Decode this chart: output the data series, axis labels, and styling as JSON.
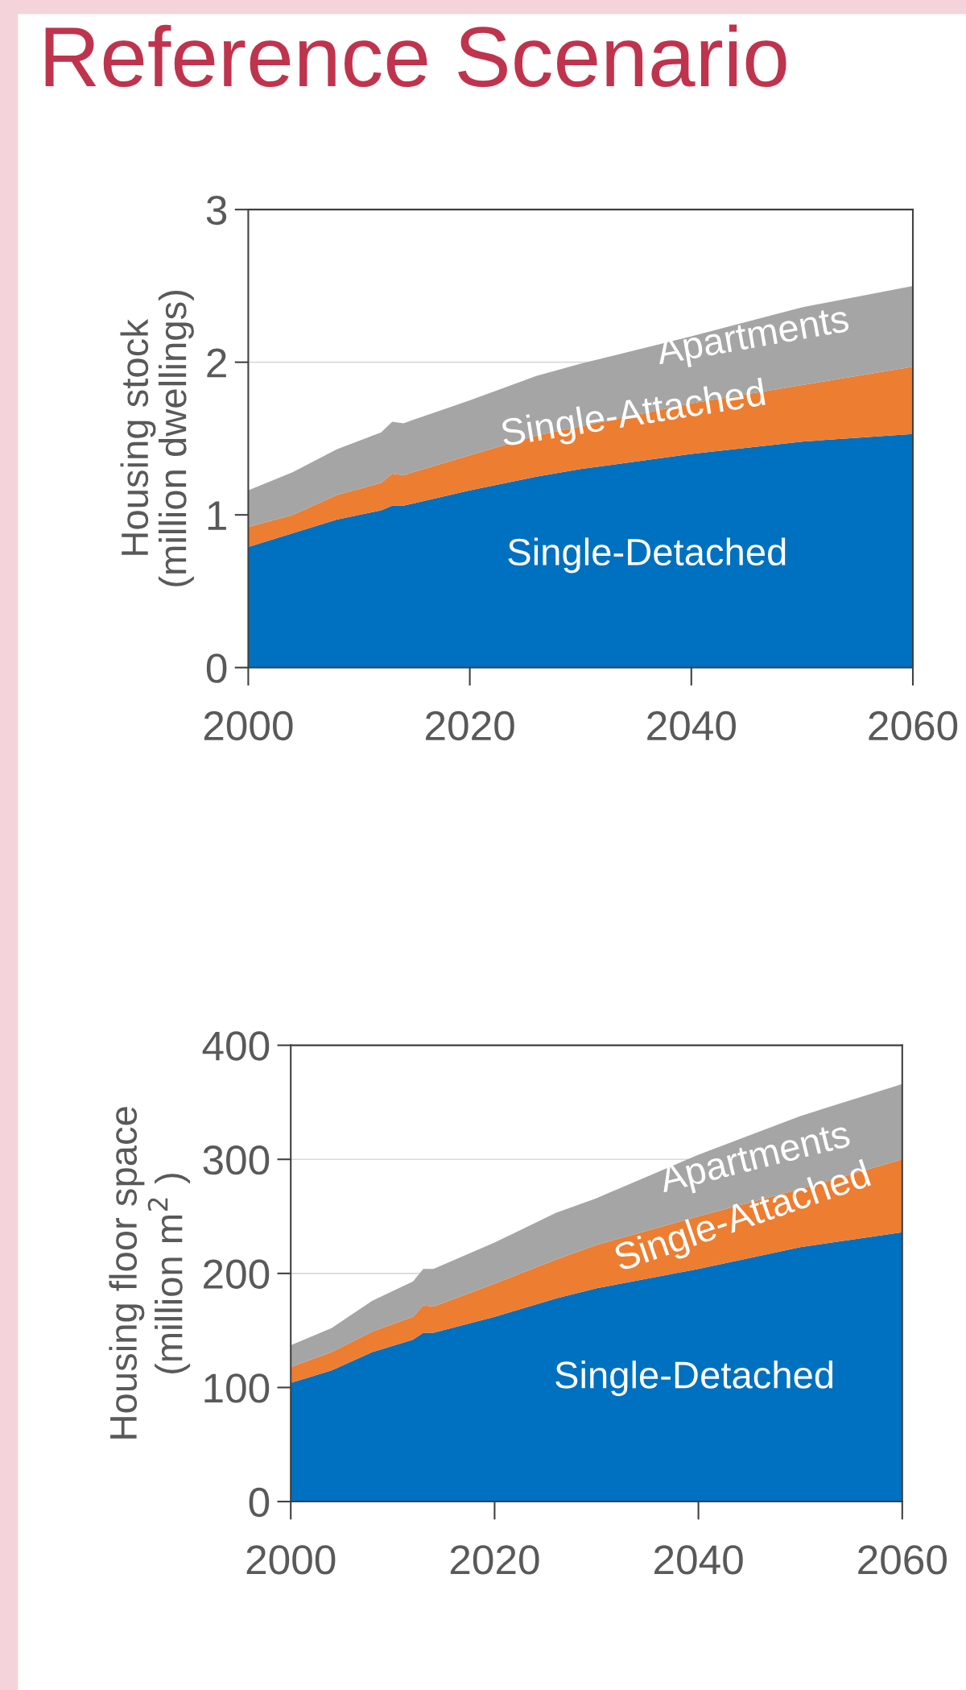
{
  "chart_data": [
    {
      "type": "area",
      "title": "Reference Scenario",
      "ylabel": "Housing stock\n(million dwellings)",
      "stacked": true,
      "grid": "y",
      "x": [
        2000,
        2004,
        2008,
        2012,
        2013,
        2014,
        2020,
        2026,
        2030,
        2040,
        2050,
        2060
      ],
      "series": [
        {
          "name": "Single-Detached",
          "color": "#0070c0",
          "values": [
            0.79,
            0.88,
            0.97,
            1.03,
            1.06,
            1.06,
            1.16,
            1.25,
            1.3,
            1.4,
            1.48,
            1.53
          ]
        },
        {
          "name": "Single-Attached",
          "color": "#ed7d31",
          "values": [
            0.13,
            0.12,
            0.16,
            0.18,
            0.21,
            0.2,
            0.23,
            0.27,
            0.28,
            0.33,
            0.37,
            0.44
          ]
        },
        {
          "name": "Apartments",
          "color": "#a5a5a5",
          "values": [
            0.24,
            0.28,
            0.3,
            0.33,
            0.34,
            0.34,
            0.36,
            0.39,
            0.41,
            0.44,
            0.51,
            0.53
          ]
        }
      ],
      "xlim": [
        2000,
        2060
      ],
      "xticks": [
        2000,
        2020,
        2040,
        2060
      ],
      "ylim": [
        0,
        3
      ],
      "yticks": [
        0,
        1,
        2,
        3
      ]
    },
    {
      "type": "area",
      "ylabel": "Housing floor space\n(million m$^{2}$ )",
      "stacked": true,
      "grid": "y",
      "x": [
        2000,
        2004,
        2008,
        2012,
        2013,
        2014,
        2020,
        2026,
        2030,
        2040,
        2050,
        2060
      ],
      "series": [
        {
          "name": "Single-Detached",
          "color": "#0070c0",
          "values": [
            104,
            115,
            131,
            142,
            148,
            148,
            162,
            178,
            187,
            204,
            223,
            236
          ]
        },
        {
          "name": "Single-Attached",
          "color": "#ed7d31",
          "values": [
            14,
            16,
            18,
            20,
            24,
            23,
            29,
            34,
            38,
            46,
            51,
            64
          ]
        },
        {
          "name": "Apartments",
          "color": "#a5a5a5",
          "values": [
            19,
            21,
            27,
            31,
            32,
            33,
            36,
            41,
            41,
            54,
            64,
            66
          ]
        }
      ],
      "xlim": [
        2000,
        2060
      ],
      "xticks": [
        2000,
        2020,
        2040,
        2060
      ],
      "ylim": [
        0,
        400
      ],
      "yticks": [
        0,
        100,
        200,
        300,
        400
      ]
    }
  ]
}
